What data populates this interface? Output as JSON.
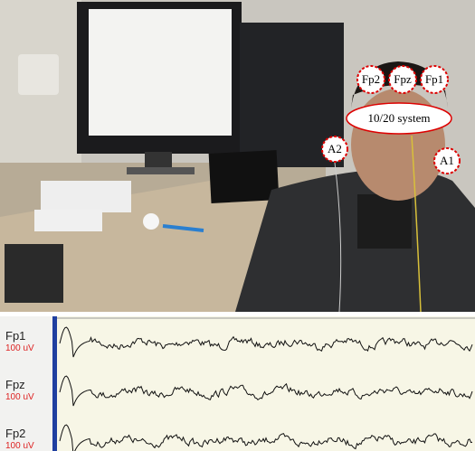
{
  "photo_labels": {
    "electrodes": [
      "Fp2",
      "Fpz",
      "Fp1"
    ],
    "system": "10/20 system",
    "ears": [
      "A2",
      "A1"
    ]
  },
  "eeg": {
    "channels": [
      {
        "name": "Fp1",
        "scale": "100 uV"
      },
      {
        "name": "Fpz",
        "scale": "100 uV"
      },
      {
        "name": "Fp2",
        "scale": "100 uV"
      }
    ]
  }
}
